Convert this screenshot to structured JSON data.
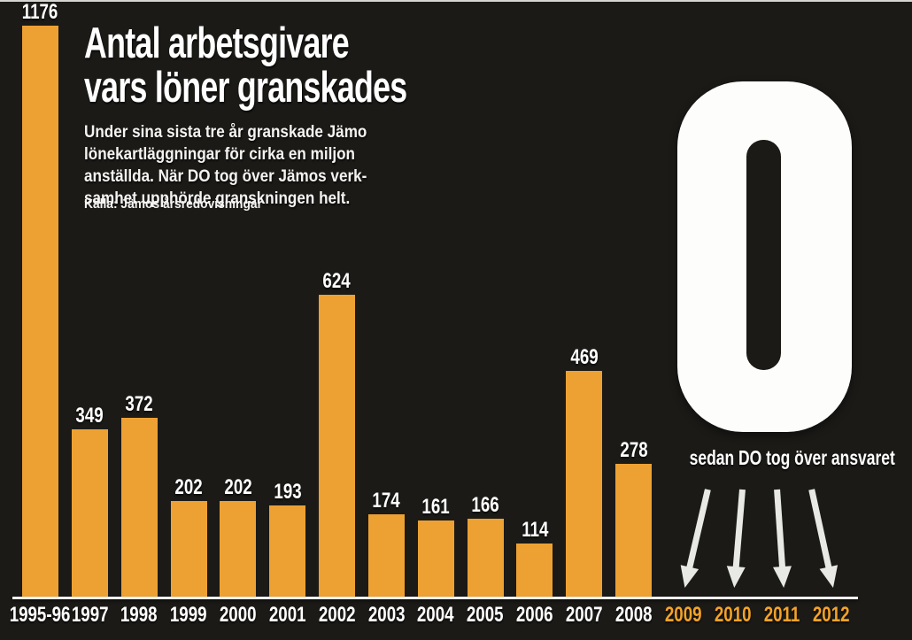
{
  "page": {
    "background_color": "#1b1a17",
    "top_border_color": "#d6d6d2"
  },
  "header": {
    "title_line1": "Antal arbetsgivare",
    "title_line2": "vars löner granskades",
    "description_lines": [
      "Under sina sista tre år granskade Jämo",
      "lönekartläggningar för cirka en miljon",
      "anställda. När DO tog över Jämos verk-",
      "samhet upphörde granskningen helt."
    ],
    "source": "Källa: Jämos årsredovisningar"
  },
  "zero_callout": {
    "value": "0",
    "caption": "sedan DO tog över ansvaret"
  },
  "chart_data": {
    "type": "bar",
    "title": "Antal arbetsgivare vars löner granskades",
    "categories": [
      "1995-96",
      "1997",
      "1998",
      "1999",
      "2000",
      "2001",
      "2002",
      "2003",
      "2004",
      "2005",
      "2006",
      "2007",
      "2008"
    ],
    "values": [
      1176,
      349,
      372,
      202,
      202,
      193,
      624,
      174,
      161,
      166,
      114,
      469,
      278
    ],
    "annotation_years": [
      "2009",
      "2010",
      "2011",
      "2012"
    ],
    "annotation_years_value": 0,
    "ylim": [
      0,
      1176
    ],
    "grid": false,
    "legend": "none",
    "bar_color": "#eda133",
    "value_label_color": "#ffffff",
    "year_label_color": "#ffffff",
    "annotation_year_color": "#f5a327",
    "axis_line_color": "#f1f0ed",
    "arrow_color": "#e8e8e4"
  }
}
